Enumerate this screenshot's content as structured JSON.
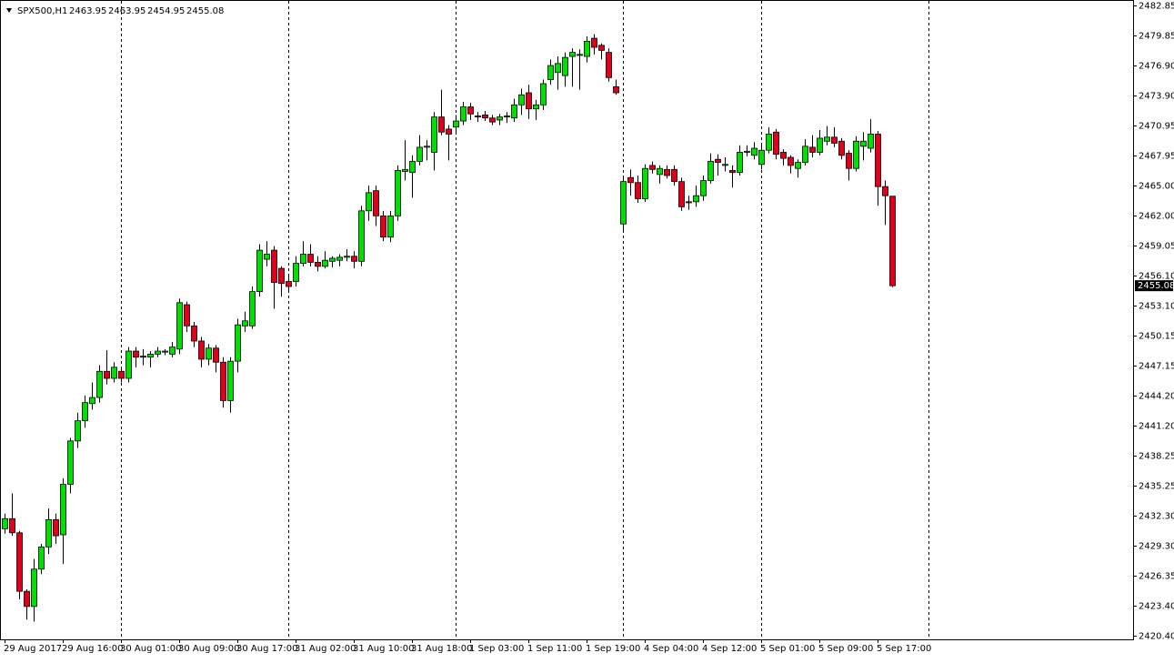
{
  "chart_data": {
    "type": "candlestick",
    "title": "SPX500,H1",
    "categories": [
      "29 Aug 2017",
      null,
      null,
      null,
      null,
      null,
      null,
      null,
      "29 Aug 16:00",
      null,
      null,
      null,
      null,
      null,
      null,
      null,
      "30 Aug 01:00",
      null,
      null,
      null,
      null,
      null,
      null,
      null,
      "30 Aug 09:00",
      null,
      null,
      null,
      null,
      null,
      null,
      null,
      "30 Aug 17:00",
      null,
      null,
      null,
      null,
      null,
      null,
      null,
      "31 Aug 02:00",
      null,
      null,
      null,
      null,
      null,
      null,
      null,
      "31 Aug 10:00",
      null,
      null,
      null,
      null,
      null,
      null,
      null,
      "31 Aug 18:00",
      null,
      null,
      null,
      null,
      null,
      null,
      null,
      "1 Sep 03:00",
      null,
      null,
      null,
      null,
      null,
      null,
      null,
      "1 Sep 11:00",
      null,
      null,
      null,
      null,
      null,
      null,
      null,
      "1 Sep 19:00",
      null,
      null,
      null,
      null,
      null,
      null,
      null,
      "4 Sep 04:00",
      null,
      null,
      null,
      null,
      null,
      null,
      null,
      "4 Sep 12:00",
      null,
      null,
      null,
      null,
      null,
      null,
      null,
      "5 Sep 01:00",
      null,
      null,
      null,
      null,
      null,
      null,
      null,
      "5 Sep 09:00",
      null,
      null,
      null,
      null,
      null,
      null,
      null,
      "5 Sep 17:00",
      null,
      null
    ],
    "open": [
      2431.0,
      2432.0,
      2430.6,
      2424.8,
      2423.3,
      2427.0,
      2429.2,
      2431.9,
      2430.4,
      2435.4,
      2439.7,
      2441.7,
      2443.4,
      2444.0,
      2446.6,
      2445.9,
      2446.6,
      2445.9,
      2448.6,
      2448.1,
      2448.0,
      2448.3,
      2448.5,
      2448.3,
      2448.8,
      2453.2,
      2451.1,
      2449.6,
      2447.8,
      2448.9,
      2447.5,
      2443.7,
      2447.6,
      2451.1,
      2451.1,
      2454.5,
      2457.7,
      2458.6,
      2456.8,
      2455.5,
      2455.5,
      2457.3,
      2458.2,
      2457.4,
      2457.0,
      2457.5,
      2457.6,
      2457.9,
      2458.0,
      2457.5,
      2462.5,
      2464.5,
      2462.0,
      2459.9,
      2462.0,
      2466.4,
      2466.3,
      2467.4,
      2468.8,
      2468.3,
      2471.8,
      2470.6,
      2470.8,
      2471.4,
      2472.8,
      2471.9,
      2472.0,
      2471.7,
      2471.5,
      2471.8,
      2471.7,
      2473.0,
      2474.2,
      2472.6,
      2473.0,
      2475.5,
      2476.2,
      2475.9,
      2477.8,
      2477.9,
      2477.8,
      2479.6,
      2478.9,
      2478.2,
      2474.8,
      2461.2,
      2465.8,
      2465.3,
      2463.7,
      2467.0,
      2466.1,
      2466.6,
      2466.6,
      2465.4,
      2463.4,
      2463.4,
      2464.0,
      2465.5,
      2467.6,
      2467.0,
      2466.5,
      2466.3,
      2468.3,
      2468.0,
      2467.1,
      2468.5,
      2470.3,
      2468.3,
      2467.8,
      2466.7,
      2467.3,
      2468.8,
      2468.3,
      2469.4,
      2469.8,
      2469.4,
      2468.2,
      2466.7,
      2468.9,
      2468.7,
      2470.1,
      2464.9,
      2463.95
    ],
    "high": [
      2432.5,
      2434.5,
      2430.8,
      2425.0,
      2428.0,
      2429.5,
      2433.0,
      2432.5,
      2436.0,
      2440.0,
      2442.5,
      2444.2,
      2445.5,
      2447.2,
      2448.7,
      2447.5,
      2447.0,
      2449.0,
      2449.0,
      2448.8,
      2448.6,
      2449.0,
      2448.8,
      2449.5,
      2453.8,
      2453.5,
      2451.5,
      2450.0,
      2449.3,
      2449.2,
      2448.0,
      2448.0,
      2451.8,
      2452.5,
      2455.0,
      2459.2,
      2459.5,
      2459.0,
      2457.0,
      2456.0,
      2458.0,
      2459.5,
      2459.2,
      2458.0,
      2458.5,
      2458.0,
      2458.2,
      2458.7,
      2458.5,
      2463.0,
      2465.0,
      2465.0,
      2462.5,
      2462.5,
      2467.0,
      2469.5,
      2468.0,
      2470.0,
      2469.5,
      2472.3,
      2474.5,
      2471.0,
      2472.0,
      2473.3,
      2473.2,
      2472.3,
      2472.4,
      2472.0,
      2472.1,
      2472.3,
      2473.6,
      2474.6,
      2475.0,
      2473.5,
      2475.5,
      2477.5,
      2477.8,
      2478.2,
      2478.6,
      2478.5,
      2479.8,
      2480.0,
      2479.1,
      2478.6,
      2475.5,
      2465.8,
      2466.6,
      2466.0,
      2467.1,
      2467.4,
      2467.0,
      2467.0,
      2467.0,
      2465.8,
      2464.0,
      2465.0,
      2466.0,
      2468.2,
      2468.1,
      2467.8,
      2467.0,
      2469.0,
      2469.0,
      2469.3,
      2469.0,
      2470.8,
      2470.6,
      2468.6,
      2468.0,
      2467.6,
      2469.6,
      2470.0,
      2470.5,
      2470.9,
      2470.8,
      2469.7,
      2468.5,
      2469.9,
      2470.3,
      2471.6,
      2470.4,
      2465.5,
      2463.95
    ],
    "low": [
      2430.5,
      2430.3,
      2424.0,
      2422.0,
      2421.8,
      2426.5,
      2428.5,
      2429.5,
      2427.5,
      2434.5,
      2439.0,
      2441.0,
      2442.8,
      2443.5,
      2445.3,
      2445.5,
      2445.5,
      2445.5,
      2447.0,
      2447.2,
      2447.0,
      2448.0,
      2448.2,
      2448.0,
      2448.3,
      2450.5,
      2449.0,
      2447.0,
      2447.2,
      2446.5,
      2443.0,
      2442.5,
      2446.5,
      2450.5,
      2450.8,
      2454.0,
      2457.0,
      2452.8,
      2454.0,
      2454.5,
      2455.0,
      2457.0,
      2457.0,
      2456.5,
      2456.8,
      2456.9,
      2457.0,
      2457.5,
      2456.8,
      2457.0,
      2461.5,
      2461.0,
      2459.5,
      2459.4,
      2461.5,
      2465.5,
      2463.8,
      2467.0,
      2467.5,
      2466.5,
      2470.0,
      2467.5,
      2470.2,
      2471.0,
      2471.5,
      2471.3,
      2471.4,
      2471.0,
      2471.0,
      2471.2,
      2471.3,
      2472.0,
      2471.6,
      2471.5,
      2472.5,
      2475.0,
      2474.5,
      2474.8,
      2474.8,
      2474.5,
      2477.2,
      2478.0,
      2477.5,
      2475.3,
      2474.0,
      2460.6,
      2464.0,
      2463.3,
      2463.4,
      2466.2,
      2465.2,
      2465.7,
      2465.0,
      2462.5,
      2462.6,
      2462.9,
      2463.5,
      2465.2,
      2466.0,
      2466.4,
      2464.8,
      2466.0,
      2467.9,
      2467.6,
      2466.6,
      2468.2,
      2467.6,
      2467.0,
      2466.2,
      2465.8,
      2467.0,
      2467.8,
      2468.0,
      2469.0,
      2468.8,
      2467.6,
      2465.5,
      2466.4,
      2467.5,
      2468.3,
      2463.0,
      2461.1,
      2454.95
    ],
    "close": [
      2432.0,
      2430.6,
      2424.8,
      2423.3,
      2427.0,
      2429.2,
      2431.9,
      2430.3,
      2435.4,
      2439.7,
      2441.7,
      2443.5,
      2444.0,
      2446.6,
      2445.9,
      2447.0,
      2445.9,
      2448.6,
      2448.0,
      2448.0,
      2448.3,
      2448.6,
      2448.6,
      2449.0,
      2453.4,
      2451.1,
      2449.6,
      2447.8,
      2448.9,
      2447.5,
      2443.7,
      2447.6,
      2451.2,
      2451.6,
      2454.5,
      2458.6,
      2458.2,
      2455.4,
      2455.3,
      2455.0,
      2457.3,
      2458.2,
      2457.4,
      2457.0,
      2457.6,
      2457.8,
      2457.9,
      2458.0,
      2457.5,
      2462.5,
      2464.3,
      2462.0,
      2459.9,
      2462.0,
      2466.5,
      2466.6,
      2467.4,
      2468.8,
      2468.9,
      2471.8,
      2470.3,
      2470.1,
      2471.4,
      2472.8,
      2472.1,
      2471.8,
      2471.7,
      2471.3,
      2471.8,
      2471.9,
      2473.0,
      2474.0,
      2472.6,
      2473.0,
      2475.1,
      2476.9,
      2477.1,
      2477.7,
      2478.2,
      2478.0,
      2479.3,
      2478.7,
      2478.4,
      2475.7,
      2474.2,
      2465.4,
      2465.3,
      2463.7,
      2466.7,
      2466.6,
      2466.7,
      2466.0,
      2465.4,
      2462.9,
      2463.3,
      2464.0,
      2465.5,
      2467.4,
      2467.3,
      2467.1,
      2466.3,
      2468.3,
      2468.4,
      2468.7,
      2468.5,
      2470.1,
      2468.1,
      2467.7,
      2467.0,
      2467.3,
      2468.9,
      2468.3,
      2469.7,
      2469.8,
      2469.2,
      2468.0,
      2466.7,
      2469.4,
      2469.4,
      2470.1,
      2464.9,
      2464.0,
      2455.08
    ],
    "up_color": "#00e000",
    "down_color": "#e0001b",
    "ylim": [
      2420.4,
      2482.85
    ],
    "yticks": [
      2482.85,
      2479.85,
      {
        "value": 2476.9,
        "label": "2476.90"
      },
      {
        "value": 2473.9,
        "label": "2473.90"
      },
      2470.95,
      2467.95,
      {
        "value": 2465,
        "label": "2465.00"
      },
      {
        "value": 2462,
        "label": "2462.00"
      },
      2459.05,
      {
        "value": 2456.1,
        "label": "2456.10"
      },
      {
        "value": 2453.1,
        "label": "2453.10"
      },
      2450.15,
      2447.15,
      {
        "value": 2444.2,
        "label": "2444.20"
      },
      {
        "value": 2441.2,
        "label": "2441.20"
      },
      2438.25,
      2435.25,
      {
        "value": 2432.3,
        "label": "2432.30"
      },
      {
        "value": 2429.3,
        "label": "2429.30"
      },
      2426.35,
      {
        "value": 2423.4,
        "label": "2423.40"
      },
      {
        "value": 2420.4,
        "label": "2420.40"
      }
    ]
  }
}
